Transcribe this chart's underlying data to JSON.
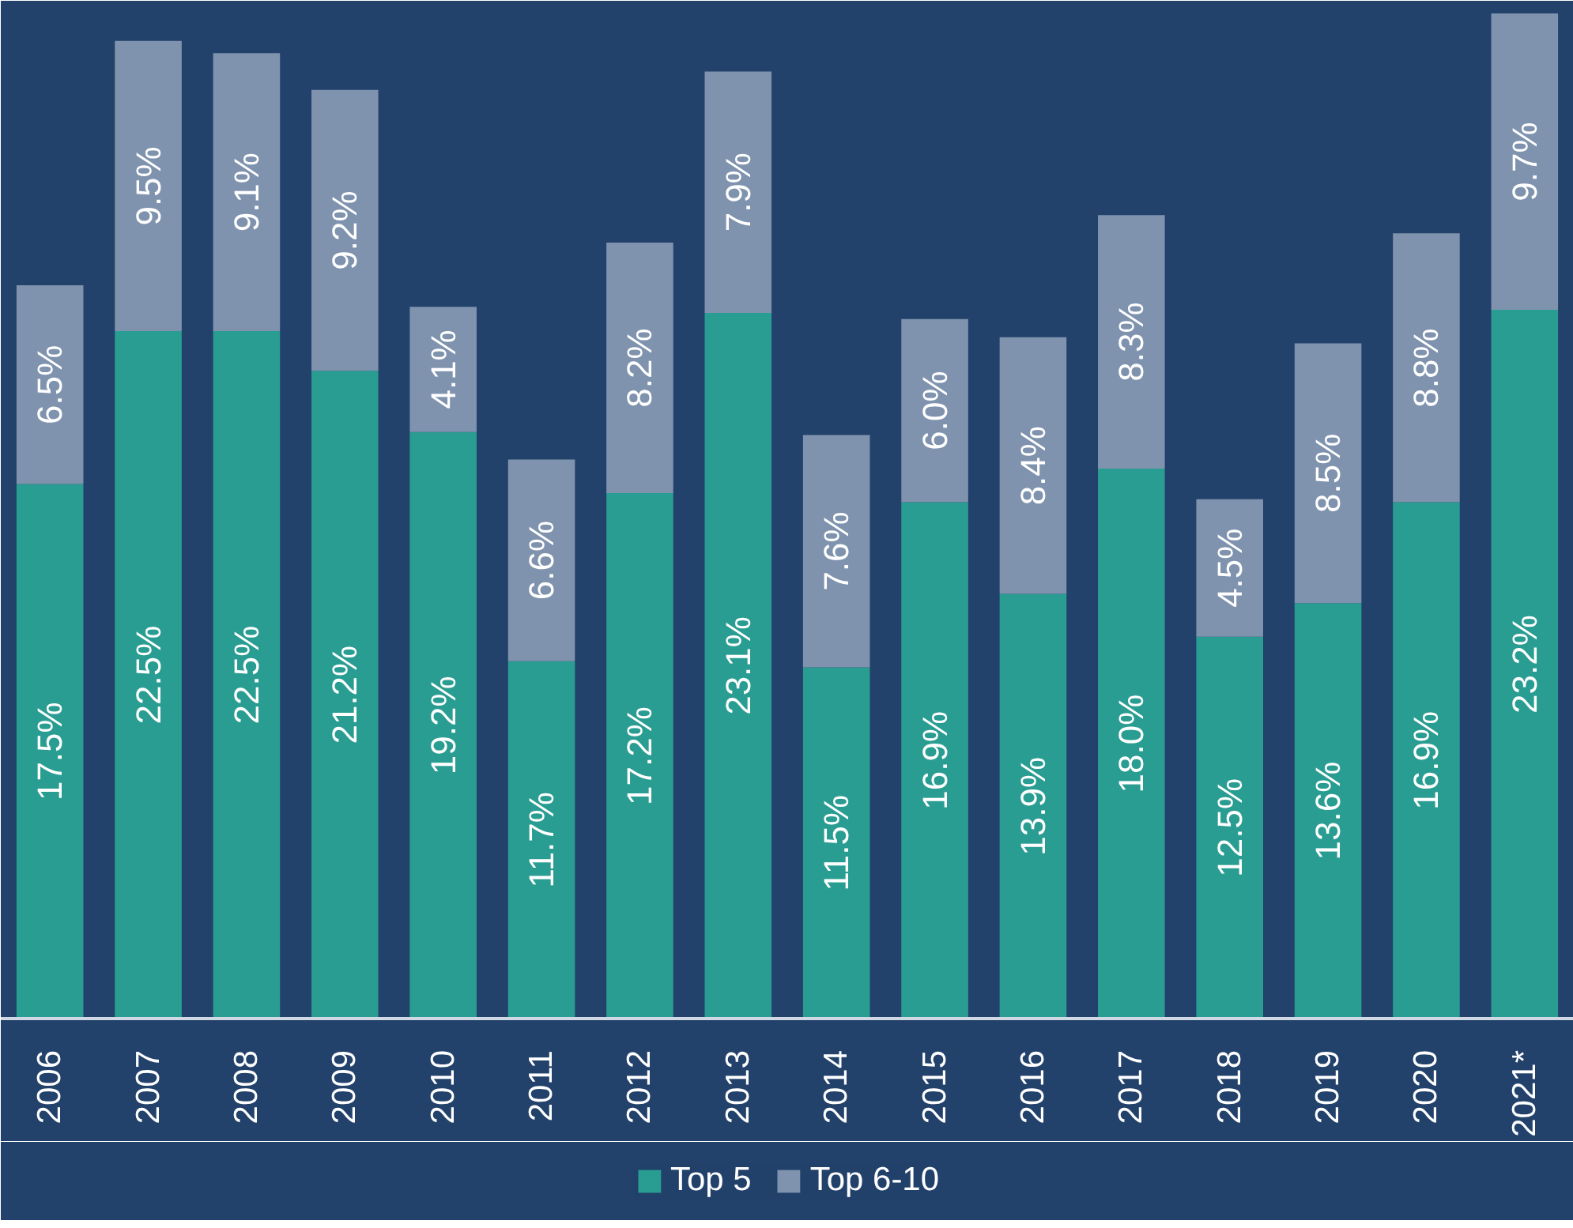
{
  "chart_data": {
    "type": "bar",
    "stacked": true,
    "data_labels": true,
    "legend": "bottom",
    "grid": false,
    "categories": [
      "2006",
      "2007",
      "2008",
      "2009",
      "2010",
      "2011",
      "2012",
      "2013",
      "2014",
      "2015",
      "2016",
      "2017",
      "2018",
      "2019",
      "2020",
      "2021*"
    ],
    "series": [
      {
        "name": "Top 5",
        "color": "#2a9d92",
        "values": [
          17.5,
          22.5,
          22.5,
          21.2,
          19.2,
          11.7,
          17.2,
          23.1,
          11.5,
          16.9,
          13.9,
          18.0,
          12.5,
          13.6,
          16.9,
          23.2
        ],
        "value_labels": [
          "17.5%",
          "22.5%",
          "22.5%",
          "21.2%",
          "19.2%",
          "11.7%",
          "17.2%",
          "23.1%",
          "11.5%",
          "16.9%",
          "13.9%",
          "18.0%",
          "12.5%",
          "13.6%",
          "16.9%",
          "23.2%"
        ]
      },
      {
        "name": "Top 6-10",
        "color": "#7f93ae",
        "values": [
          6.5,
          9.5,
          9.1,
          9.2,
          4.1,
          6.6,
          8.2,
          7.9,
          7.6,
          6.0,
          8.4,
          8.3,
          4.5,
          8.5,
          8.8,
          9.7
        ],
        "value_labels": [
          "6.5%",
          "9.5%",
          "9.1%",
          "9.2%",
          "4.1%",
          "6.6%",
          "8.2%",
          "7.9%",
          "7.6%",
          "6.0%",
          "8.4%",
          "8.3%",
          "4.5%",
          "8.5%",
          "8.8%",
          "9.7%"
        ]
      }
    ]
  }
}
